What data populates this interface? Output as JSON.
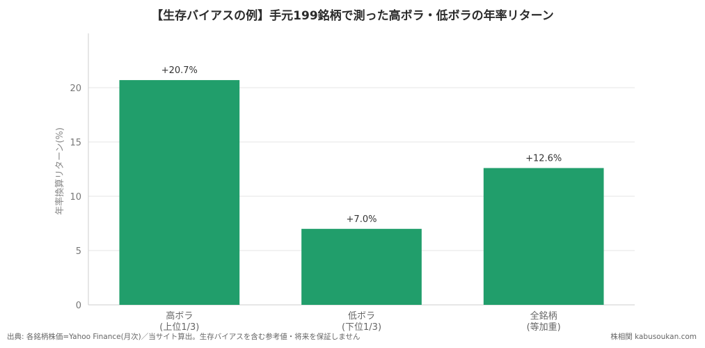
{
  "chart_data": {
    "type": "bar",
    "title": "【生存バイアスの例】手元199銘柄で測った高ボラ・低ボラの年率リターン",
    "ylabel": "年率換算リターン(%)",
    "xlabel": "",
    "categories": [
      [
        "高ボラ",
        "(上位1/3)"
      ],
      [
        "低ボラ",
        "(下位1/3)"
      ],
      [
        "全銘柄",
        "(等加重)"
      ]
    ],
    "values": [
      20.7,
      7.0,
      12.6
    ],
    "data_labels": [
      "+20.7%",
      "+7.0%",
      "+12.6%"
    ],
    "ylim": [
      0,
      25
    ],
    "yticks": [
      0,
      5,
      10,
      15,
      20
    ],
    "grid": true,
    "bar_color": "#219e6b",
    "grid_color": "#e6e6e6",
    "axis_color": "#cccccc"
  },
  "footer": {
    "source": "出典: 各銘柄株価=Yahoo Finance(月次)／当サイト算出。生存バイアスを含む参考値・将来を保証しません",
    "site": "株相関 kabusoukan.com"
  }
}
